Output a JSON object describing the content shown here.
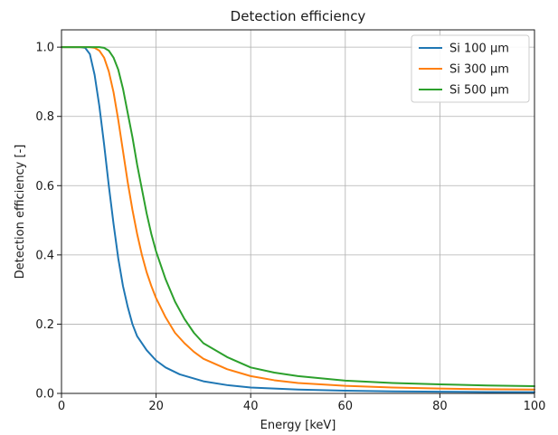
{
  "chart_data": {
    "type": "line",
    "title": "Detection efficiency",
    "xlabel": "Energy [keV]",
    "ylabel": "Detection efficiency [-]",
    "xlim": [
      0,
      100
    ],
    "ylim": [
      0,
      1.05
    ],
    "xticks": [
      0,
      20,
      40,
      60,
      80,
      100
    ],
    "yticks": [
      0.0,
      0.2,
      0.4,
      0.6,
      0.8,
      1.0
    ],
    "xtick_labels": [
      "0",
      "20",
      "40",
      "60",
      "80",
      "100"
    ],
    "ytick_labels": [
      "0.0",
      "0.2",
      "0.4",
      "0.6",
      "0.8",
      "1.0"
    ],
    "grid": true,
    "legend_position": "top-right",
    "series": [
      {
        "name": "Si 100 μm",
        "color": "#1f77b4",
        "x": [
          0,
          4,
          5,
          6,
          7,
          8,
          9,
          10,
          11,
          12,
          13,
          14,
          15,
          16,
          18,
          20,
          22,
          25,
          30,
          35,
          40,
          50,
          60,
          70,
          80,
          90,
          100
        ],
        "y": [
          1.0,
          1.0,
          0.998,
          0.98,
          0.92,
          0.83,
          0.72,
          0.6,
          0.49,
          0.39,
          0.31,
          0.25,
          0.2,
          0.165,
          0.125,
          0.095,
          0.075,
          0.055,
          0.035,
          0.024,
          0.017,
          0.011,
          0.008,
          0.006,
          0.005,
          0.004,
          0.0035
        ]
      },
      {
        "name": "Si 300 μm",
        "color": "#ff7f0e",
        "x": [
          0,
          6,
          7,
          8,
          9,
          10,
          11,
          12,
          13,
          14,
          15,
          16,
          17,
          18,
          19,
          20,
          22,
          24,
          26,
          28,
          30,
          35,
          40,
          45,
          50,
          60,
          70,
          80,
          90,
          100
        ],
        "y": [
          1.0,
          1.0,
          0.998,
          0.99,
          0.97,
          0.93,
          0.87,
          0.79,
          0.7,
          0.61,
          0.53,
          0.46,
          0.4,
          0.35,
          0.31,
          0.275,
          0.22,
          0.175,
          0.145,
          0.12,
          0.1,
          0.07,
          0.05,
          0.038,
          0.03,
          0.022,
          0.017,
          0.014,
          0.012,
          0.011
        ]
      },
      {
        "name": "Si 500 μm",
        "color": "#2ca02c",
        "x": [
          0,
          8,
          9,
          10,
          11,
          12,
          13,
          14,
          15,
          16,
          17,
          18,
          19,
          20,
          22,
          24,
          26,
          28,
          30,
          35,
          40,
          45,
          50,
          60,
          70,
          80,
          90,
          100
        ],
        "y": [
          1.0,
          1.0,
          0.998,
          0.99,
          0.97,
          0.935,
          0.88,
          0.81,
          0.74,
          0.66,
          0.59,
          0.52,
          0.46,
          0.41,
          0.33,
          0.265,
          0.215,
          0.175,
          0.145,
          0.105,
          0.075,
          0.06,
          0.05,
          0.037,
          0.03,
          0.026,
          0.023,
          0.021
        ]
      }
    ]
  }
}
